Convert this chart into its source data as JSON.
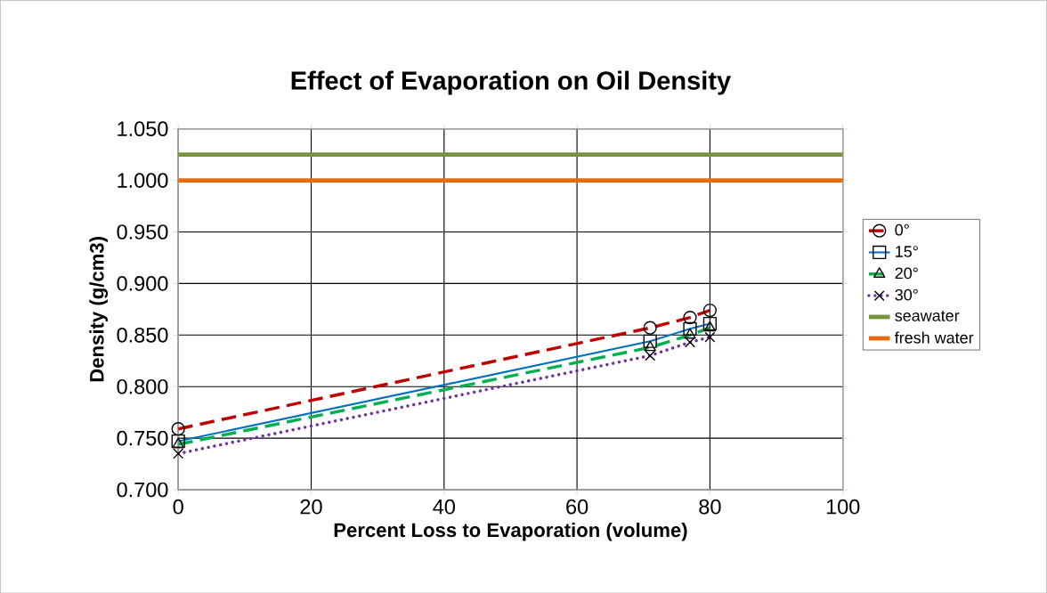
{
  "chart_data": {
    "type": "line",
    "title": "Effect of Evaporation on Oil Density",
    "xlabel": "Percent Loss to Evaporation (volume)",
    "ylabel": "Density (g/cm3)",
    "x": [
      0,
      71,
      77,
      80
    ],
    "series": [
      {
        "name": "0°",
        "color": "#c00000",
        "values": [
          0.759,
          0.857,
          0.867,
          0.874
        ],
        "marker": "circle",
        "line_style": "dashed"
      },
      {
        "name": "15°",
        "color": "#0070c0",
        "values": [
          0.747,
          0.844,
          0.856,
          0.861
        ],
        "marker": "square",
        "line_style": "solid"
      },
      {
        "name": "20°",
        "color": "#00b050",
        "values": [
          0.744,
          0.838,
          0.85,
          0.857
        ],
        "marker": "triangle",
        "line_style": "dashed"
      },
      {
        "name": "30°",
        "color": "#7030a0",
        "values": [
          0.735,
          0.83,
          0.843,
          0.848
        ],
        "marker": "cross",
        "line_style": "dotted"
      }
    ],
    "ref_lines": [
      {
        "axis": "y",
        "value": 1.025,
        "label": "seawater",
        "color": "#77933c",
        "line_style": "solid"
      },
      {
        "axis": "y",
        "value": 1.0,
        "label": "fresh water",
        "color": "#e46c0a",
        "line_style": "solid"
      }
    ],
    "xlim": [
      0,
      100
    ],
    "xticks": [
      0,
      20,
      40,
      60,
      80,
      100
    ],
    "ylim": [
      0.7,
      1.05
    ],
    "yticks": [
      {
        "value": 0.7,
        "label": "0.700"
      },
      {
        "value": 0.75,
        "label": "0.750"
      },
      {
        "value": 0.8,
        "label": "0.800"
      },
      {
        "value": 0.85,
        "label": "0.850"
      },
      {
        "value": 0.9,
        "label": "0.900"
      },
      {
        "value": 0.95,
        "label": "0.950"
      },
      {
        "value": 1.0,
        "label": "1.000"
      },
      {
        "value": 1.05,
        "label": "1.050"
      }
    ],
    "grid": true,
    "legend": "right"
  }
}
